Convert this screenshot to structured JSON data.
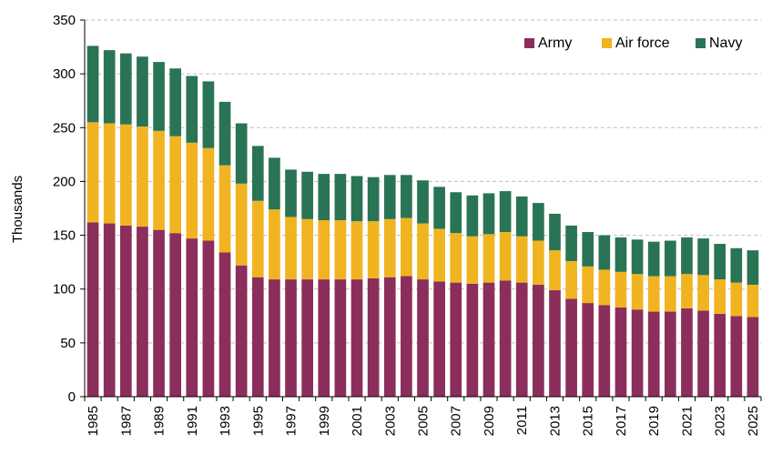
{
  "chart_data": {
    "type": "bar",
    "stacked": true,
    "ylabel": "Thousands",
    "xlabel": "",
    "ylim": [
      0,
      350
    ],
    "yticks": [
      0,
      50,
      100,
      150,
      200,
      250,
      300,
      350
    ],
    "grid": "horizontal dashed",
    "legend_position": "top-right",
    "categories": [
      "1985",
      "1986",
      "1987",
      "1988",
      "1989",
      "1990",
      "1991",
      "1992",
      "1993",
      "1994",
      "1995",
      "1996",
      "1997",
      "1998",
      "1999",
      "2000",
      "2001",
      "2002",
      "2003",
      "2004",
      "2005",
      "2006",
      "2007",
      "2008",
      "2009",
      "2010",
      "2011",
      "2012",
      "2013",
      "2014",
      "2015",
      "2016",
      "2017",
      "2018",
      "2019",
      "2020",
      "2021",
      "2022",
      "2023",
      "2024",
      "2025"
    ],
    "series": [
      {
        "name": "Army",
        "color": "#8B2E5B",
        "values": [
          162,
          161,
          159,
          158,
          155,
          152,
          147,
          145,
          134,
          122,
          111,
          109,
          109,
          109,
          109,
          109,
          109,
          110,
          111,
          112,
          109,
          107,
          106,
          105,
          106,
          108,
          106,
          104,
          99,
          91,
          87,
          85,
          83,
          81,
          79,
          79,
          82,
          80,
          77,
          75,
          74
        ]
      },
      {
        "name": "Air force",
        "color": "#F0B421",
        "values": [
          93,
          93,
          94,
          93,
          92,
          90,
          89,
          86,
          81,
          76,
          71,
          65,
          58,
          56,
          55,
          55,
          54,
          53,
          54,
          54,
          52,
          49,
          46,
          44,
          45,
          45,
          43,
          41,
          37,
          35,
          34,
          33,
          33,
          33,
          33,
          33,
          32,
          33,
          32,
          31,
          30
        ]
      },
      {
        "name": "Navy",
        "color": "#2A7456",
        "values": [
          71,
          68,
          66,
          65,
          64,
          63,
          62,
          62,
          59,
          56,
          51,
          48,
          44,
          44,
          43,
          43,
          42,
          41,
          41,
          40,
          40,
          39,
          38,
          38,
          38,
          38,
          37,
          35,
          34,
          33,
          32,
          32,
          32,
          32,
          32,
          33,
          34,
          34,
          33,
          32,
          32
        ]
      }
    ]
  }
}
